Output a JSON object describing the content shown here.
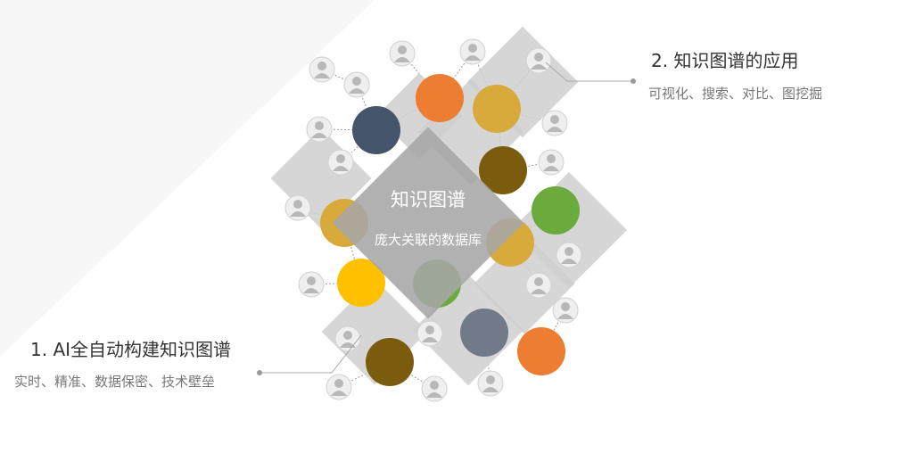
{
  "center": {
    "title": "知识图谱",
    "subtitle": "庞大关联的数据库"
  },
  "callouts": [
    {
      "title": "1. AI全自动构建知识图谱",
      "description": "实时、精准、数据保密、技术壁垒"
    },
    {
      "title": "2. 知识图谱的应用",
      "description": "可视化、搜索、对比、图挖掘"
    }
  ],
  "colors": {
    "orange": "#ED7D31",
    "gold": "#D7AA3B",
    "brown": "#7B5B0D",
    "navy": "#44546A",
    "green": "#6BAA3C",
    "yellow": "#FFC000",
    "slate": "#707A88",
    "diamond": "#CFCFCF",
    "center_diamond": "#A6A6A6",
    "person": "#B8B8B8",
    "connector": "#AAAAAA"
  },
  "icons": [
    "person-icon"
  ]
}
